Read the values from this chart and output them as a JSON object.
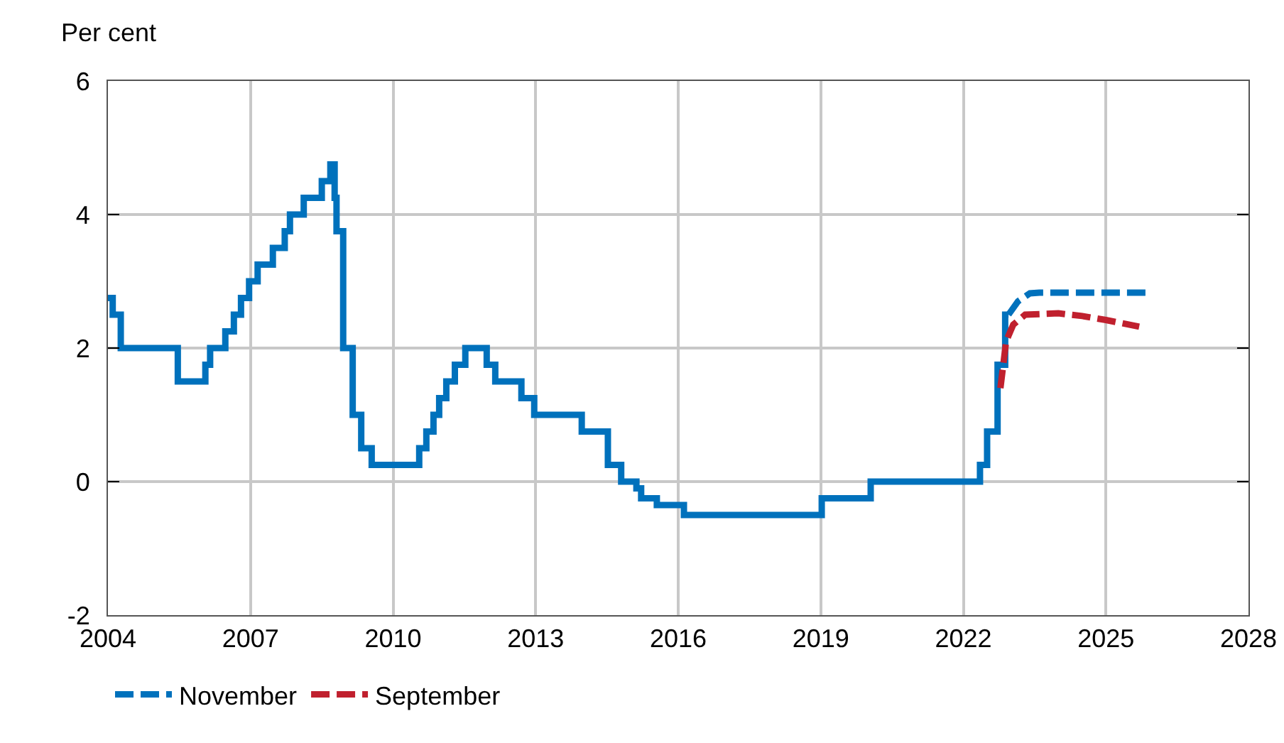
{
  "chart_data": {
    "type": "line",
    "ylabel": "Per cent",
    "xlim": [
      2004,
      2028
    ],
    "xticks": [
      2004,
      2007,
      2010,
      2013,
      2016,
      2019,
      2022,
      2025,
      2028
    ],
    "ylim": [
      -2,
      6
    ],
    "yticks": [
      -2,
      0,
      2,
      4,
      6
    ],
    "grid": true,
    "legend": "bottom left",
    "marker": "none",
    "series": [
      {
        "type": "step",
        "color": "#0071bc",
        "line_style": "solid",
        "x": [
          2004.0,
          2004.1,
          2004.27,
          2005.47,
          2006.05,
          2006.15,
          2006.47,
          2006.65,
          2006.8,
          2006.97,
          2007.15,
          2007.47,
          2007.72,
          2007.83,
          2008.12,
          2008.5,
          2008.68,
          2008.77,
          2008.81,
          2008.95,
          2009.15,
          2009.33,
          2009.55,
          2010.55,
          2010.7,
          2010.85,
          2010.97,
          2011.12,
          2011.3,
          2011.52,
          2011.97,
          2012.15,
          2012.7,
          2012.97,
          2013.97,
          2014.52,
          2014.8,
          2015.12,
          2015.22,
          2015.55,
          2016.12,
          2019.02,
          2020.05,
          2022.35,
          2022.5,
          2022.72,
          2022.88,
          2022.95
        ],
        "values": [
          2.75,
          2.5,
          2.0,
          1.5,
          1.75,
          2.0,
          2.25,
          2.5,
          2.75,
          3.0,
          3.25,
          3.5,
          3.75,
          4.0,
          4.25,
          4.5,
          4.75,
          4.25,
          3.75,
          2.0,
          1.0,
          0.5,
          0.25,
          0.5,
          0.75,
          1.0,
          1.25,
          1.5,
          1.75,
          2.0,
          1.75,
          1.5,
          1.25,
          1.0,
          0.75,
          0.25,
          0.0,
          -0.1,
          -0.25,
          -0.35,
          -0.5,
          -0.25,
          0.0,
          0.25,
          0.75,
          1.75,
          2.5,
          2.5
        ]
      },
      {
        "name": "November",
        "color": "#0071bc",
        "line_style": "dashed",
        "x": [
          2022.95,
          2023.15,
          2023.4,
          2023.6,
          2025.85
        ],
        "values": [
          2.5,
          2.7,
          2.82,
          2.83,
          2.83
        ]
      },
      {
        "name": "September",
        "color": "#c0202e",
        "line_style": "dashed",
        "x": [
          2022.78,
          2022.9,
          2023.05,
          2023.3,
          2024.0,
          2024.5,
          2025.0,
          2025.7
        ],
        "values": [
          1.4,
          2.1,
          2.35,
          2.5,
          2.52,
          2.48,
          2.42,
          2.32
        ]
      }
    ]
  }
}
